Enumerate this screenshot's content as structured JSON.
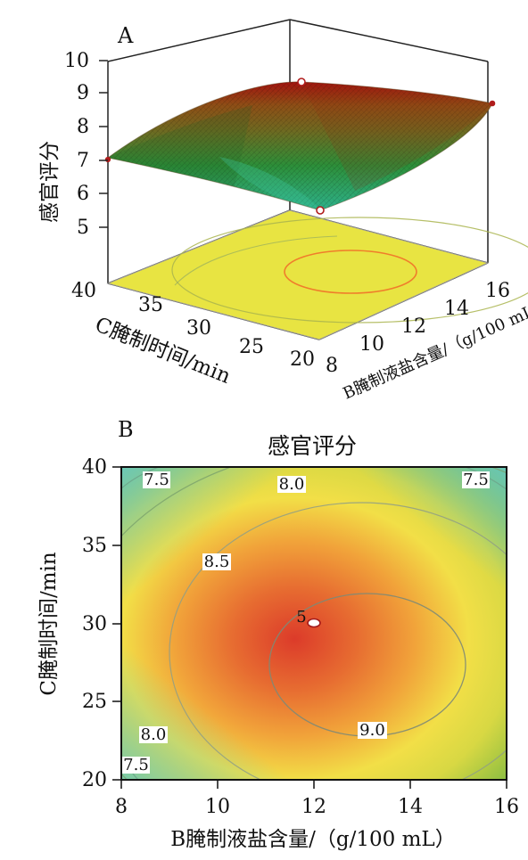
{
  "chart_data": [
    {
      "type": "surface",
      "panel_label": "A",
      "z_label": "感官评分",
      "x_label": "B腌制液盐含量/（g/100 mL）",
      "y_label": "C腌制时间/min",
      "x_ticks": [
        "8",
        "10",
        "12",
        "14",
        "16"
      ],
      "y_ticks": [
        "20",
        "25",
        "30",
        "35",
        "40"
      ],
      "z_ticks": [
        "5",
        "6",
        "7",
        "8",
        "9",
        "10"
      ],
      "x_range": [
        8,
        16
      ],
      "y_range": [
        20,
        40
      ],
      "z_range": [
        4,
        10
      ],
      "grid": false,
      "colors": {
        "surface_low": "#37a37c",
        "surface_mid": "#8e6f22",
        "surface_high": "#9a1d12",
        "contour_fill": "#e9e23f",
        "contour_line": "#ef8a27",
        "marker_edge": "#a51e1e"
      },
      "design_points": [
        {
          "x": 12,
          "y": 30,
          "z": 9.2
        },
        {
          "x": 16,
          "y": 40,
          "z": 9.1
        },
        {
          "x": 8,
          "y": 40,
          "z": 7.0
        },
        {
          "x": 12,
          "y": 20,
          "z": 5.0
        }
      ]
    },
    {
      "type": "contour",
      "panel_label": "B",
      "title": "感官评分",
      "x_label": "B腌制液盐含量/（g/100 mL）",
      "y_label": "C腌制时间/min",
      "x_range": [
        8,
        16
      ],
      "y_range": [
        20,
        40
      ],
      "x_ticks": [
        "8",
        "10",
        "12",
        "14",
        "16"
      ],
      "y_ticks": [
        "20",
        "25",
        "30",
        "35",
        "40"
      ],
      "grid": false,
      "contour_labels": [
        {
          "text": "7.5",
          "x": 8.8,
          "y": 39.1
        },
        {
          "text": "8.0",
          "x": 12.0,
          "y": 38.8
        },
        {
          "text": "7.5",
          "x": 15.2,
          "y": 39.1
        },
        {
          "text": "8.5",
          "x": 10.0,
          "y": 33.4
        },
        {
          "text": "8.0",
          "x": 8.7,
          "y": 22.8
        },
        {
          "text": "7.5",
          "x": 8.4,
          "y": 20.6
        },
        {
          "text": "9.0",
          "x": 13.2,
          "y": 22.8
        },
        {
          "text": "5",
          "x": 11.8,
          "y": 30.2
        }
      ],
      "center_point": {
        "x": 12.0,
        "y": 30.0
      },
      "color_scale": [
        "#47b79f",
        "#70b33f",
        "#c9d33f",
        "#efe542",
        "#f0b33e",
        "#ea7d2e",
        "#dd3f2c"
      ]
    }
  ]
}
